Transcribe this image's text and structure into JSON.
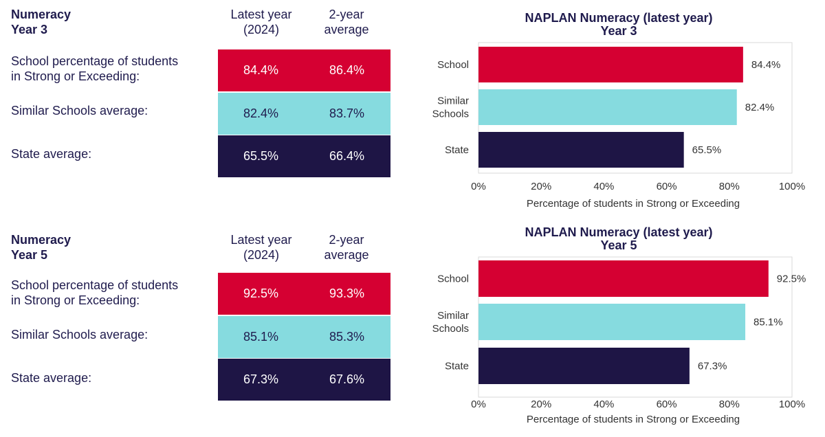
{
  "sections": [
    {
      "heading": "Numeracy\nYear 3",
      "col_latest": "Latest year\n(2024)",
      "col_avg": "2-year\naverage",
      "rows": [
        {
          "label": "School percentage of students\nin Strong or Exceeding:",
          "latest": "84.4%",
          "avg": "86.4%"
        },
        {
          "label": "Similar Schools average:",
          "latest": "82.4%",
          "avg": "83.7%"
        },
        {
          "label": "State average:",
          "latest": "65.5%",
          "avg": "66.4%"
        }
      ]
    },
    {
      "heading": "Numeracy\nYear 5",
      "col_latest": "Latest year\n(2024)",
      "col_avg": "2-year\naverage",
      "rows": [
        {
          "label": "School percentage of students\nin Strong or Exceeding:",
          "latest": "92.5%",
          "avg": "93.3%"
        },
        {
          "label": "Similar Schools average:",
          "latest": "85.1%",
          "avg": "85.3%"
        },
        {
          "label": "State average:",
          "latest": "67.3%",
          "avg": "67.6%"
        }
      ]
    }
  ],
  "colors": {
    "school": "#d50032",
    "similar": "#86dbdf",
    "state": "#1e1545"
  },
  "chart_data": [
    {
      "type": "bar",
      "orientation": "horizontal",
      "title": "NAPLAN Numeracy (latest year)\nYear 3",
      "categories": [
        "School",
        "Similar\nSchools",
        "State"
      ],
      "values": [
        84.4,
        82.4,
        65.5
      ],
      "value_labels": [
        "84.4%",
        "82.4%",
        "65.5%"
      ],
      "xlabel": "Percentage of students in Strong or Exceeding",
      "xlim": [
        0,
        100
      ],
      "ticks": [
        "0%",
        "20%",
        "40%",
        "60%",
        "80%",
        "100%"
      ],
      "grid": false
    },
    {
      "type": "bar",
      "orientation": "horizontal",
      "title": "NAPLAN Numeracy (latest year)\nYear 5",
      "categories": [
        "School",
        "Similar\nSchools",
        "State"
      ],
      "values": [
        92.5,
        85.1,
        67.3
      ],
      "value_labels": [
        "92.5%",
        "85.1%",
        "67.3%"
      ],
      "xlabel": "Percentage of students in Strong or Exceeding",
      "xlim": [
        0,
        100
      ],
      "ticks": [
        "0%",
        "20%",
        "40%",
        "60%",
        "80%",
        "100%"
      ],
      "grid": false
    }
  ]
}
